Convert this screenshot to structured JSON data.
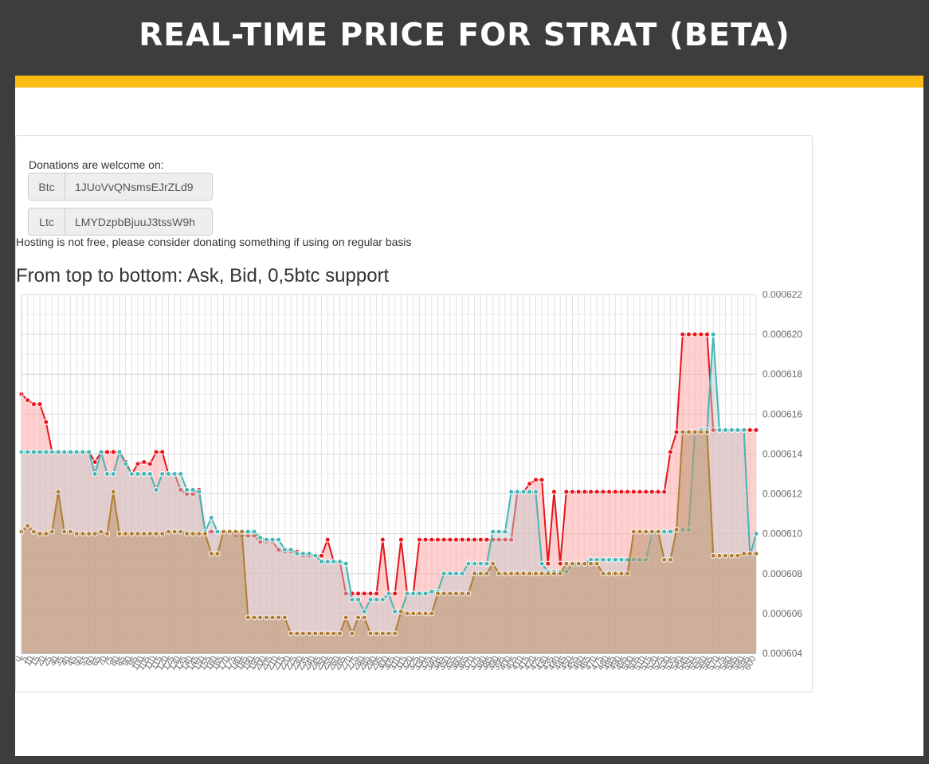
{
  "page": {
    "title": "REAL-TIME PRICE FOR STRAT (BETA)"
  },
  "donations": {
    "label": "Donations are welcome on:",
    "btc": {
      "coin": "Btc",
      "address": "1JUoVvQNsmsEJrZLd9"
    },
    "ltc": {
      "coin": "Ltc",
      "address": "LMYDzpbBjuuJ3tssW9h"
    },
    "note": "Hosting is not free, please consider donating something if using on regular basis"
  },
  "colors": {
    "header_bg": "#3d3d3d",
    "accent": "#fdbd13",
    "ask": "#e8141b",
    "bid": "#45b5b5",
    "support": "#b07d32"
  },
  "chart_data": {
    "type": "area",
    "title": "From top to bottom: Ask, Bid, 0,5btc support",
    "xlabel": "",
    "ylabel": "",
    "ylim": [
      0.000604,
      0.000622
    ],
    "yticks": [
      "0.000604",
      "0.000606",
      "0.000608",
      "0.000610",
      "0.000612",
      "0.000614",
      "0.000616",
      "0.000618",
      "0.000620",
      "0.000622"
    ],
    "grid": true,
    "legend": "none",
    "x_tick_step": 5,
    "x": [
      0,
      5,
      10,
      15,
      20,
      25,
      30,
      35,
      40,
      45,
      50,
      55,
      60,
      65,
      70,
      75,
      80,
      85,
      90,
      95,
      100,
      105,
      110,
      115,
      120,
      125,
      130,
      135,
      140,
      145,
      150,
      155,
      160,
      165,
      170,
      175,
      180,
      185,
      190,
      195,
      200,
      205,
      210,
      215,
      220,
      225,
      230,
      235,
      240,
      245,
      250,
      255,
      260,
      265,
      270,
      275,
      280,
      285,
      290,
      295,
      300,
      305,
      310,
      315,
      320,
      325,
      330,
      335,
      340,
      345,
      350,
      355,
      360,
      365,
      370,
      375,
      380,
      385,
      390,
      395,
      400,
      405,
      410,
      415,
      420,
      425,
      430,
      435,
      440,
      445,
      450,
      455,
      460,
      465,
      470,
      475,
      480,
      485,
      490,
      495,
      500,
      505,
      510,
      515,
      520,
      525,
      530,
      535,
      540,
      545,
      550,
      555,
      560,
      565,
      570,
      575,
      580,
      585,
      590,
      595,
      600
    ],
    "series": [
      {
        "name": "Ask",
        "values": [
          0.000617,
          0.0006167,
          0.0006165,
          0.0006165,
          0.0006156,
          0.0006141,
          0.0006141,
          0.0006141,
          0.0006141,
          0.0006141,
          0.0006141,
          0.0006141,
          0.0006136,
          0.0006141,
          0.0006141,
          0.0006141,
          0.0006141,
          0.0006136,
          0.000613,
          0.0006135,
          0.0006136,
          0.0006135,
          0.0006141,
          0.0006141,
          0.000613,
          0.000613,
          0.0006122,
          0.000612,
          0.000612,
          0.0006122,
          0.0006101,
          0.0006101,
          0.0006101,
          0.0006101,
          0.0006101,
          0.0006099,
          0.0006099,
          0.0006099,
          0.0006099,
          0.0006096,
          0.0006096,
          0.0006096,
          0.0006092,
          0.0006091,
          0.0006091,
          0.0006091,
          0.0006089,
          0.0006089,
          0.0006089,
          0.0006089,
          0.0006097,
          0.0006086,
          0.0006086,
          0.000607,
          0.000607,
          0.000607,
          0.000607,
          0.000607,
          0.000607,
          0.0006097,
          0.000607,
          0.000607,
          0.0006097,
          0.000607,
          0.000607,
          0.0006097,
          0.0006097,
          0.0006097,
          0.0006097,
          0.0006097,
          0.0006097,
          0.0006097,
          0.0006097,
          0.0006097,
          0.0006097,
          0.0006097,
          0.0006097,
          0.0006097,
          0.0006097,
          0.0006097,
          0.0006097,
          0.0006121,
          0.0006121,
          0.0006125,
          0.0006127,
          0.0006127,
          0.0006085,
          0.0006121,
          0.0006085,
          0.0006121,
          0.0006121,
          0.0006121,
          0.0006121,
          0.0006121,
          0.0006121,
          0.0006121,
          0.0006121,
          0.0006121,
          0.0006121,
          0.0006121,
          0.0006121,
          0.0006121,
          0.0006121,
          0.0006121,
          0.0006121,
          0.0006121,
          0.0006141,
          0.0006151,
          0.00062,
          0.00062,
          0.00062,
          0.00062,
          0.00062,
          0.0006152,
          0.0006152,
          0.0006152,
          0.0006152,
          0.0006152,
          0.0006152,
          0.0006152,
          0.0006152
        ]
      },
      {
        "name": "Bid",
        "values": [
          0.0006141,
          0.0006141,
          0.0006141,
          0.0006141,
          0.0006141,
          0.0006141,
          0.0006141,
          0.0006141,
          0.0006141,
          0.0006141,
          0.0006141,
          0.0006141,
          0.000613,
          0.0006141,
          0.000613,
          0.000613,
          0.0006141,
          0.0006135,
          0.000613,
          0.000613,
          0.000613,
          0.000613,
          0.0006122,
          0.000613,
          0.000613,
          0.000613,
          0.000613,
          0.0006122,
          0.0006122,
          0.0006121,
          0.0006101,
          0.0006108,
          0.0006101,
          0.0006101,
          0.0006101,
          0.0006101,
          0.0006101,
          0.0006101,
          0.0006101,
          0.0006098,
          0.0006097,
          0.0006097,
          0.0006097,
          0.0006092,
          0.0006092,
          0.000609,
          0.000609,
          0.000609,
          0.0006089,
          0.0006086,
          0.0006086,
          0.0006086,
          0.0006086,
          0.0006085,
          0.0006067,
          0.0006067,
          0.0006061,
          0.0006067,
          0.0006067,
          0.0006067,
          0.000607,
          0.0006061,
          0.0006061,
          0.000607,
          0.000607,
          0.000607,
          0.000607,
          0.0006071,
          0.0006071,
          0.000608,
          0.000608,
          0.000608,
          0.000608,
          0.0006085,
          0.0006085,
          0.0006085,
          0.0006085,
          0.0006101,
          0.0006101,
          0.0006101,
          0.0006121,
          0.0006121,
          0.0006121,
          0.0006121,
          0.0006121,
          0.0006085,
          0.0006081,
          0.0006081,
          0.0006081,
          0.0006081,
          0.0006085,
          0.0006085,
          0.0006085,
          0.0006087,
          0.0006087,
          0.0006087,
          0.0006087,
          0.0006087,
          0.0006087,
          0.0006087,
          0.0006087,
          0.0006087,
          0.0006087,
          0.00061,
          0.0006101,
          0.0006101,
          0.0006101,
          0.0006102,
          0.0006102,
          0.0006102,
          0.0006151,
          0.0006152,
          0.0006152,
          0.00062,
          0.0006152,
          0.0006152,
          0.0006152,
          0.0006152,
          0.0006152,
          0.0006089,
          0.00061
        ]
      },
      {
        "name": "0,5btc support",
        "values": [
          0.0006101,
          0.0006104,
          0.0006101,
          0.00061,
          0.00061,
          0.0006101,
          0.0006121,
          0.0006101,
          0.0006101,
          0.00061,
          0.00061,
          0.00061,
          0.00061,
          0.0006101,
          0.00061,
          0.0006121,
          0.00061,
          0.00061,
          0.00061,
          0.00061,
          0.00061,
          0.00061,
          0.00061,
          0.00061,
          0.0006101,
          0.0006101,
          0.0006101,
          0.00061,
          0.00061,
          0.00061,
          0.00061,
          0.000609,
          0.000609,
          0.0006101,
          0.0006101,
          0.0006101,
          0.0006101,
          0.0006058,
          0.0006058,
          0.0006058,
          0.0006058,
          0.0006058,
          0.0006058,
          0.0006058,
          0.000605,
          0.000605,
          0.000605,
          0.000605,
          0.000605,
          0.000605,
          0.000605,
          0.000605,
          0.000605,
          0.0006058,
          0.000605,
          0.0006058,
          0.0006058,
          0.000605,
          0.000605,
          0.000605,
          0.000605,
          0.000605,
          0.0006061,
          0.000606,
          0.000606,
          0.000606,
          0.000606,
          0.000606,
          0.000607,
          0.000607,
          0.000607,
          0.000607,
          0.000607,
          0.000607,
          0.000608,
          0.000608,
          0.000608,
          0.0006085,
          0.000608,
          0.000608,
          0.000608,
          0.000608,
          0.000608,
          0.000608,
          0.000608,
          0.000608,
          0.000608,
          0.000608,
          0.000608,
          0.0006085,
          0.0006085,
          0.0006085,
          0.0006085,
          0.0006085,
          0.0006085,
          0.000608,
          0.000608,
          0.000608,
          0.000608,
          0.000608,
          0.0006101,
          0.0006101,
          0.0006101,
          0.0006101,
          0.0006101,
          0.0006087,
          0.0006087,
          0.0006102,
          0.0006151,
          0.0006151,
          0.0006151,
          0.0006151,
          0.0006151,
          0.0006089,
          0.0006089,
          0.0006089,
          0.0006089,
          0.0006089,
          0.000609,
          0.000609,
          0.000609
        ]
      }
    ]
  }
}
